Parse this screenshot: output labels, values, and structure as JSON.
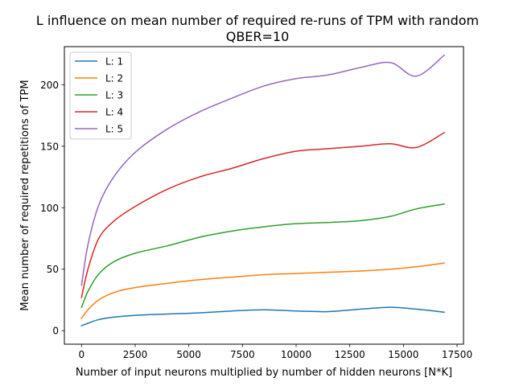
{
  "chart_data": {
    "type": "line",
    "title": "L influence on mean number of required re-runs of TPM with random",
    "subtitle": "QBER=10",
    "xlabel": "Number of input neurons multiplied by number of hidden neurons [N*K]",
    "ylabel": "Mean number of required repetitions of TPM",
    "xlim": [
      -800,
      17800
    ],
    "ylim": [
      -11,
      231
    ],
    "x_ticks": [
      0,
      2500,
      5000,
      7500,
      10000,
      12500,
      15000,
      17500
    ],
    "y_ticks": [
      0,
      50,
      100,
      150,
      200
    ],
    "grid": false,
    "legend_position": "top-left",
    "series": [
      {
        "name": "L: 1",
        "color": "#1f77b4",
        "points": [
          [
            0,
            4
          ],
          [
            300,
            6
          ],
          [
            800,
            9
          ],
          [
            1500,
            11
          ],
          [
            2500,
            12.5
          ],
          [
            4000,
            13.5
          ],
          [
            5500,
            14.5
          ],
          [
            7000,
            16
          ],
          [
            8500,
            17
          ],
          [
            10000,
            16
          ],
          [
            11500,
            15.5
          ],
          [
            13000,
            17.5
          ],
          [
            14400,
            19
          ],
          [
            15600,
            17.5
          ],
          [
            16900,
            15
          ]
        ]
      },
      {
        "name": "L: 2",
        "color": "#ff7f0e",
        "points": [
          [
            0,
            10
          ],
          [
            300,
            17
          ],
          [
            800,
            25
          ],
          [
            1500,
            31
          ],
          [
            2500,
            35
          ],
          [
            4000,
            38.5
          ],
          [
            5500,
            41.5
          ],
          [
            7000,
            43.5
          ],
          [
            8500,
            45.5
          ],
          [
            10000,
            46.5
          ],
          [
            11500,
            47.5
          ],
          [
            13000,
            48.5
          ],
          [
            14400,
            50
          ],
          [
            15600,
            52
          ],
          [
            16900,
            55
          ]
        ]
      },
      {
        "name": "L: 3",
        "color": "#2ca02c",
        "points": [
          [
            0,
            19
          ],
          [
            300,
            32
          ],
          [
            800,
            46
          ],
          [
            1500,
            56
          ],
          [
            2500,
            63
          ],
          [
            4000,
            69
          ],
          [
            5500,
            76
          ],
          [
            7000,
            81
          ],
          [
            8500,
            84.5
          ],
          [
            10000,
            87
          ],
          [
            11500,
            88
          ],
          [
            13000,
            89.5
          ],
          [
            14400,
            93
          ],
          [
            15600,
            99
          ],
          [
            16900,
            103
          ]
        ]
      },
      {
        "name": "L: 4",
        "color": "#d62728",
        "points": [
          [
            0,
            27
          ],
          [
            300,
            50
          ],
          [
            800,
            75
          ],
          [
            1500,
            89
          ],
          [
            2500,
            101
          ],
          [
            4000,
            115
          ],
          [
            5500,
            125
          ],
          [
            7000,
            132
          ],
          [
            8500,
            140
          ],
          [
            10000,
            146
          ],
          [
            11500,
            148
          ],
          [
            13000,
            150
          ],
          [
            14400,
            152
          ],
          [
            15600,
            149
          ],
          [
            16900,
            161
          ]
        ]
      },
      {
        "name": "L: 5",
        "color": "#9467bd",
        "points": [
          [
            0,
            37
          ],
          [
            300,
            70
          ],
          [
            800,
            102
          ],
          [
            1500,
            125
          ],
          [
            2500,
            145
          ],
          [
            4000,
            164
          ],
          [
            5500,
            178
          ],
          [
            7000,
            189
          ],
          [
            8500,
            199
          ],
          [
            10000,
            205
          ],
          [
            11500,
            208
          ],
          [
            13000,
            214
          ],
          [
            14400,
            218
          ],
          [
            15600,
            207
          ],
          [
            16900,
            224
          ]
        ]
      }
    ]
  }
}
